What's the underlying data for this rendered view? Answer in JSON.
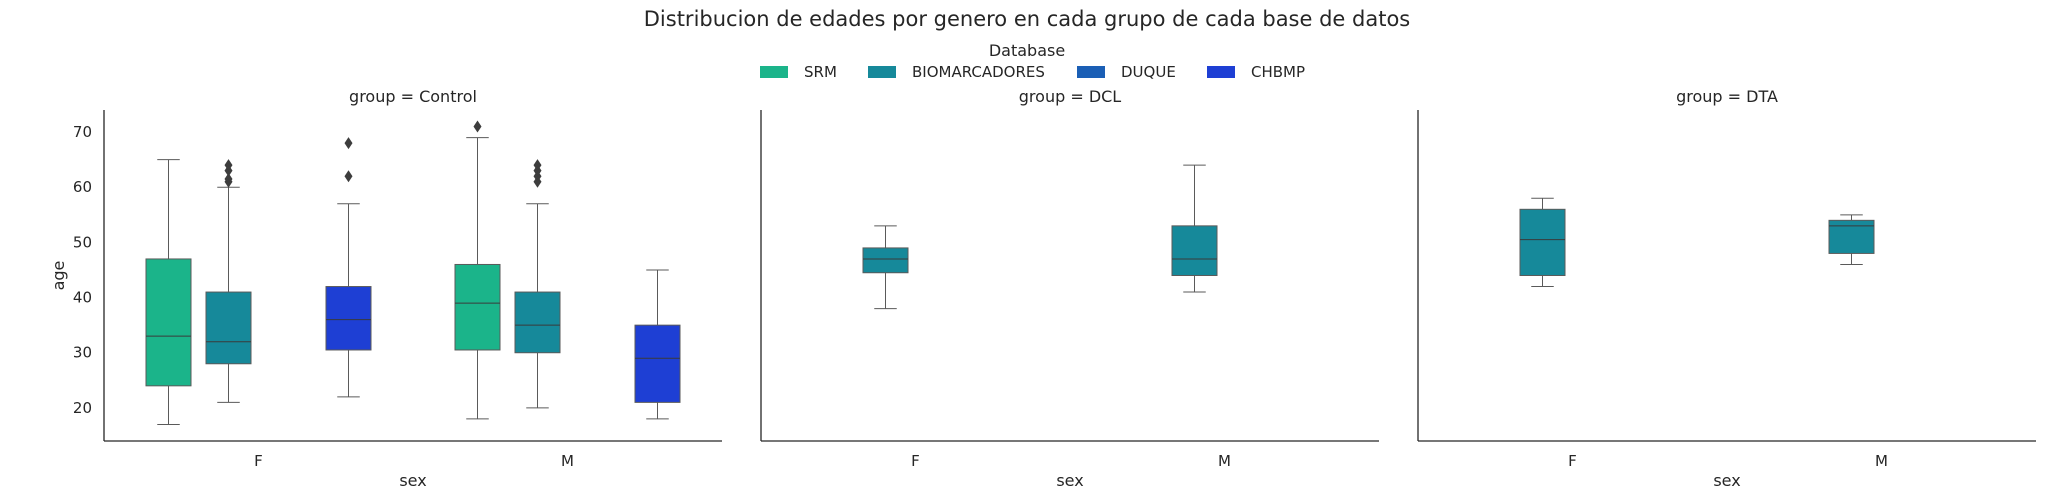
{
  "figure": {
    "suptitle": "Distribucion de edades por genero en cada grupo de cada base de datos",
    "legend": {
      "title": "Database",
      "placement": "top-center",
      "entries": [
        {
          "label": "SRM",
          "color": "#1bb48a"
        },
        {
          "label": "BIOMARCADORES",
          "color": "#16899a"
        },
        {
          "label": "DUQUE",
          "color": "#1b5fb5"
        },
        {
          "label": "CHBMP",
          "color": "#1e3fd4"
        }
      ]
    }
  },
  "chart_data": [
    {
      "type": "box",
      "title": "group = Control",
      "xlabel": "sex",
      "ylabel": "age",
      "categories": [
        "F",
        "M"
      ],
      "ylim": [
        14,
        74
      ],
      "yticks": [
        20,
        30,
        40,
        50,
        60,
        70
      ],
      "grid": false,
      "series": [
        {
          "name": "SRM",
          "boxes": [
            {
              "category": "F",
              "whislo": 17,
              "q1": 24,
              "med": 33,
              "q3": 47,
              "whishi": 65,
              "fliers": []
            },
            {
              "category": "M",
              "whislo": 18,
              "q1": 30.5,
              "med": 39,
              "q3": 46,
              "whishi": 69,
              "fliers": [
                71
              ]
            }
          ]
        },
        {
          "name": "BIOMARCADORES",
          "boxes": [
            {
              "category": "F",
              "whislo": 21,
              "q1": 28,
              "med": 32,
              "q3": 41,
              "whishi": 60,
              "fliers": [
                61,
                61.5,
                63,
                64
              ]
            },
            {
              "category": "M",
              "whislo": 20,
              "q1": 30,
              "med": 35,
              "q3": 41,
              "whishi": 57,
              "fliers": [
                61,
                62,
                63,
                64
              ]
            }
          ]
        },
        {
          "name": "DUQUE",
          "boxes": []
        },
        {
          "name": "CHBMP",
          "boxes": [
            {
              "category": "F",
              "whislo": 22,
              "q1": 30.5,
              "med": 36,
              "q3": 42,
              "whishi": 57,
              "fliers": [
                62,
                68
              ]
            },
            {
              "category": "M",
              "whislo": 18,
              "q1": 21,
              "med": 29,
              "q3": 35,
              "whishi": 45,
              "fliers": []
            }
          ]
        }
      ]
    },
    {
      "type": "box",
      "title": "group = DCL",
      "xlabel": "sex",
      "ylabel": "",
      "categories": [
        "F",
        "M"
      ],
      "ylim": [
        14,
        74
      ],
      "grid": false,
      "series": [
        {
          "name": "SRM",
          "boxes": []
        },
        {
          "name": "BIOMARCADORES",
          "boxes": [
            {
              "category": "F",
              "whislo": 38,
              "q1": 44.5,
              "med": 47,
              "q3": 49,
              "whishi": 53,
              "fliers": []
            },
            {
              "category": "M",
              "whislo": 41,
              "q1": 44,
              "med": 47,
              "q3": 53,
              "whishi": 64,
              "fliers": []
            }
          ]
        },
        {
          "name": "DUQUE",
          "boxes": []
        },
        {
          "name": "CHBMP",
          "boxes": []
        }
      ]
    },
    {
      "type": "box",
      "title": "group = DTA",
      "xlabel": "sex",
      "ylabel": "",
      "categories": [
        "F",
        "M"
      ],
      "ylim": [
        14,
        74
      ],
      "grid": false,
      "series": [
        {
          "name": "SRM",
          "boxes": []
        },
        {
          "name": "BIOMARCADORES",
          "boxes": [
            {
              "category": "F",
              "whislo": 42,
              "q1": 44,
              "med": 50.5,
              "q3": 56,
              "whishi": 58,
              "fliers": []
            },
            {
              "category": "M",
              "whislo": 46,
              "q1": 48,
              "med": 53,
              "q3": 54,
              "whishi": 55,
              "fliers": []
            }
          ]
        },
        {
          "name": "DUQUE",
          "boxes": []
        },
        {
          "name": "CHBMP",
          "boxes": []
        }
      ]
    }
  ]
}
